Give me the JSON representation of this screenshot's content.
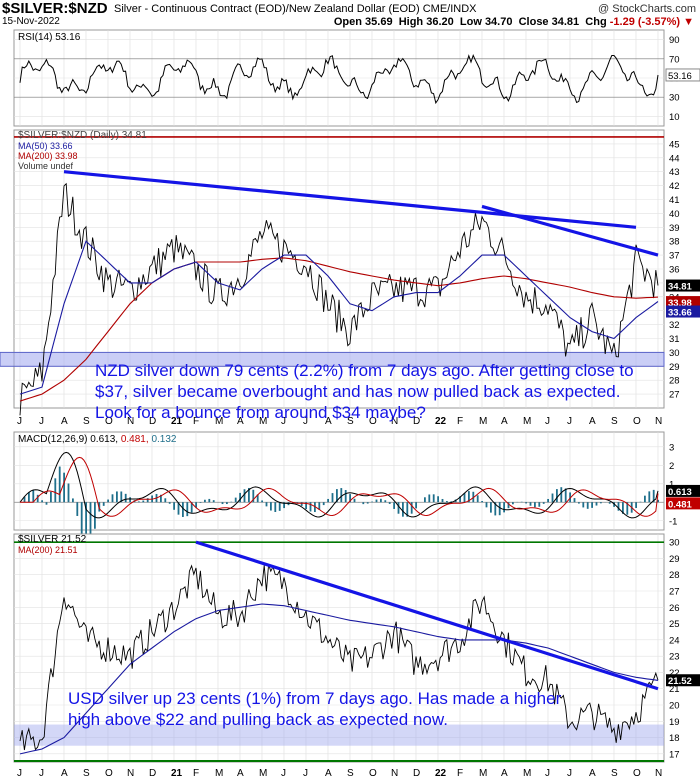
{
  "header": {
    "symbol": "$SILVER:$NZD",
    "description": "Silver - Continuous Contract (EOD)/New Zealand Dollar (EOD) CME/INDX",
    "copyright": "@ StockCharts.com",
    "date": "15-Nov-2022",
    "open_label": "Open",
    "open": "35.69",
    "high_label": "High",
    "high": "36.20",
    "low_label": "Low",
    "low": "34.70",
    "close_label": "Close",
    "close": "34.81",
    "chg_label": "Chg",
    "chg": "-1.29 (-3.57%)"
  },
  "colors": {
    "annotation": "#1414e6",
    "price": "#000000",
    "ma50": "#1a1aa0",
    "ma200": "#b00000",
    "macd_hist": "#1f6f8b",
    "resistance": "#b00000",
    "support_fill": "#9ea6ee",
    "green_line": "#007700"
  },
  "chart_data": [
    {
      "type": "line",
      "name": "rsi_panel",
      "legend": "RSI(14) 53.16",
      "current": "53.16",
      "y_ticks": [
        "90",
        "70",
        "50",
        "30",
        "10"
      ],
      "ylim": [
        0,
        100
      ],
      "guides": [
        70,
        30
      ]
    },
    {
      "type": "line",
      "name": "nzd_silver_panel",
      "legend": [
        "$SILVER:$NZD (Daily) 34.81",
        "MA(50) 33.66",
        "MA(200) 33.98",
        "Volume undef"
      ],
      "y_ticks": [
        "45",
        "44",
        "43",
        "42",
        "41",
        "40",
        "39",
        "38",
        "37",
        "36",
        "35",
        "34",
        "33",
        "32",
        "31",
        "30",
        "29",
        "28",
        "27"
      ],
      "ylim": [
        26,
        46
      ],
      "price_tags": [
        "34.81",
        "33.98",
        "33.66"
      ],
      "x": [
        "2020-06",
        "2020-07",
        "2020-08",
        "2020-09",
        "2020-10",
        "2020-11",
        "2020-12",
        "2021-01",
        "2021-02",
        "2021-03",
        "2021-04",
        "2021-05",
        "2021-06",
        "2021-07",
        "2021-08",
        "2021-09",
        "2021-10",
        "2021-11",
        "2021-12",
        "2022-01",
        "2022-02",
        "2022-03",
        "2022-04",
        "2022-05",
        "2022-06",
        "2022-07",
        "2022-08",
        "2022-09",
        "2022-10",
        "2022-11"
      ],
      "series": [
        {
          "name": "$SILVER:$NZD",
          "values": [
            26.5,
            28.5,
            41.5,
            38,
            35,
            34.5,
            36,
            37.5,
            36,
            34,
            35.5,
            38.5,
            37.5,
            36.5,
            33.5,
            31.5,
            34,
            34.5,
            34.5,
            34.5,
            37.5,
            39.5,
            37,
            34,
            33.5,
            30,
            32.5,
            29.5,
            36.5,
            34.81
          ]
        },
        {
          "name": "MA(50)",
          "values": [
            27,
            27.5,
            33.5,
            38,
            36.5,
            35,
            35,
            36,
            36.5,
            35,
            34.5,
            36,
            37,
            37,
            35.5,
            33.5,
            33,
            34,
            34.3,
            34.3,
            35.5,
            37,
            37,
            35.5,
            34,
            32.5,
            31.5,
            31,
            32.5,
            33.66
          ]
        },
        {
          "name": "MA(200)",
          "values": [
            26.5,
            27,
            28,
            29.5,
            31.5,
            33.5,
            35,
            36,
            36.5,
            36.5,
            36.5,
            36.7,
            36.8,
            36.6,
            36.2,
            35.8,
            35.5,
            35.2,
            35,
            34.8,
            35,
            35.3,
            35.5,
            35.3,
            35,
            34.7,
            34.3,
            34,
            33.9,
            33.98
          ]
        }
      ],
      "resistance_level": 45.5,
      "support_band": [
        29,
        30
      ],
      "trendlines": [
        {
          "from": {
            "x": "2020-08",
            "y": 43
          },
          "to": {
            "x": "2022-10",
            "y": 39
          }
        },
        {
          "from": {
            "x": "2022-03",
            "y": 40.5
          },
          "to": {
            "x": "2022-11",
            "y": 37
          }
        }
      ],
      "x_labels": [
        "J",
        "J",
        "A",
        "S",
        "O",
        "N",
        "D",
        "21",
        "F",
        "M",
        "A",
        "M",
        "J",
        "J",
        "A",
        "S",
        "O",
        "N",
        "D",
        "22",
        "F",
        "M",
        "A",
        "M",
        "J",
        "J",
        "A",
        "S",
        "O",
        "N"
      ],
      "annotation": "NZD silver down 79 cents (2.2%) from 7 days ago. After getting close to $37, silver became overbought and has now pulled back as expected. Look for a bounce from around $34 maybe?"
    },
    {
      "type": "line",
      "name": "macd_panel",
      "legend_prefix": "MACD(12,26,9)",
      "legend_v1": "0.613,",
      "legend_v2": "0.481,",
      "legend_v3": "0.132",
      "y_ticks": [
        "3",
        "2",
        "1",
        "0",
        "-1"
      ],
      "ylim": [
        -1.5,
        3.8
      ],
      "price_tags": [
        "0.613",
        "0.481"
      ]
    },
    {
      "type": "line",
      "name": "usd_silver_panel",
      "legend": [
        "$SILVER 21.52",
        "MA(200) 21.51"
      ],
      "y_ticks": [
        "30",
        "29",
        "28",
        "27",
        "26",
        "25",
        "24",
        "23",
        "22",
        "21",
        "20",
        "19",
        "18",
        "17"
      ],
      "ylim": [
        16.5,
        30.5
      ],
      "price_tags": [
        "21.52"
      ],
      "x": [
        "2020-06",
        "2020-07",
        "2020-08",
        "2020-09",
        "2020-10",
        "2020-11",
        "2020-12",
        "2021-01",
        "2021-02",
        "2021-03",
        "2021-04",
        "2021-05",
        "2021-06",
        "2021-07",
        "2021-08",
        "2021-09",
        "2021-10",
        "2021-11",
        "2021-12",
        "2022-01",
        "2022-02",
        "2022-03",
        "2022-04",
        "2022-05",
        "2022-06",
        "2022-07",
        "2022-08",
        "2022-09",
        "2022-10",
        "2022-11"
      ],
      "series": [
        {
          "name": "$SILVER",
          "values": [
            17.5,
            18,
            27,
            24,
            23.5,
            23,
            24.5,
            26,
            28,
            25.5,
            25.5,
            28,
            27.5,
            25.5,
            24,
            22.5,
            23,
            24.5,
            22.5,
            23,
            24,
            26.5,
            24,
            22,
            21.5,
            19,
            19.5,
            18.5,
            19.5,
            21.52
          ]
        },
        {
          "name": "MA(200)",
          "values": [
            17,
            17.3,
            18,
            19.5,
            21,
            22.5,
            23.5,
            24.5,
            25.3,
            25.8,
            26,
            26.2,
            26.1,
            25.8,
            25.5,
            25.2,
            25,
            24.8,
            24.5,
            24.2,
            24,
            24,
            24,
            23.8,
            23.5,
            23,
            22.5,
            22,
            21.7,
            21.51
          ]
        }
      ],
      "resistance_level": 30,
      "support_band": [
        17.5,
        18.8
      ],
      "trendlines": [
        {
          "from": {
            "x": "2021-02",
            "y": 30
          },
          "to": {
            "x": "2022-11",
            "y": 21
          }
        }
      ],
      "x_labels": [
        "J",
        "J",
        "A",
        "S",
        "O",
        "N",
        "D",
        "21",
        "F",
        "M",
        "A",
        "M",
        "J",
        "J",
        "A",
        "S",
        "O",
        "N",
        "D",
        "22",
        "F",
        "M",
        "A",
        "M",
        "J",
        "J",
        "A",
        "S",
        "O",
        "N"
      ],
      "annotation": "USD silver up 23 cents (1%) from 7 days ago. Has made a higher high above $22 and pulling back as expected now."
    }
  ]
}
